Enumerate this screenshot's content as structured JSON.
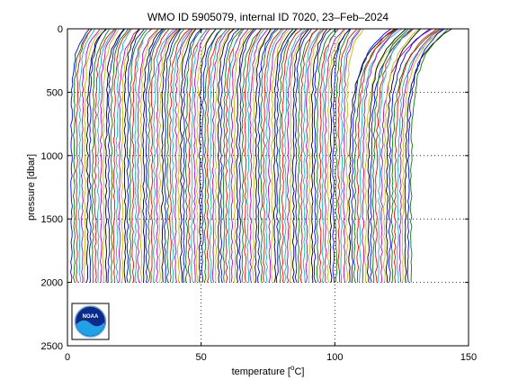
{
  "chart_data": {
    "type": "line",
    "title": "WMO ID 5905079, internal ID 7020, 23–Feb–2024",
    "xlabel": "temperature [°C]",
    "xlabel_main": "temperature [",
    "xlabel_sup": "o",
    "xlabel_unit": "C]",
    "ylabel": "pressure [dbar]",
    "xlim": [
      0,
      150
    ],
    "ylim": [
      0,
      2500
    ],
    "y_reversed": true,
    "xticks": [
      0,
      50,
      100,
      150
    ],
    "yticks": [
      0,
      500,
      1000,
      1500,
      2000,
      2500
    ],
    "grid": "dotted",
    "profile_count": 128,
    "profile_offset_step_c": 1.0,
    "profile_max_pressure_dbar": 2000,
    "series_colors": [
      "#0000ff",
      "#008000",
      "#ff0000",
      "#00bfbf",
      "#bf00bf",
      "#bfbf00",
      "#000000"
    ]
  },
  "logo": {
    "name": "NOAA",
    "text": "NOAA"
  }
}
